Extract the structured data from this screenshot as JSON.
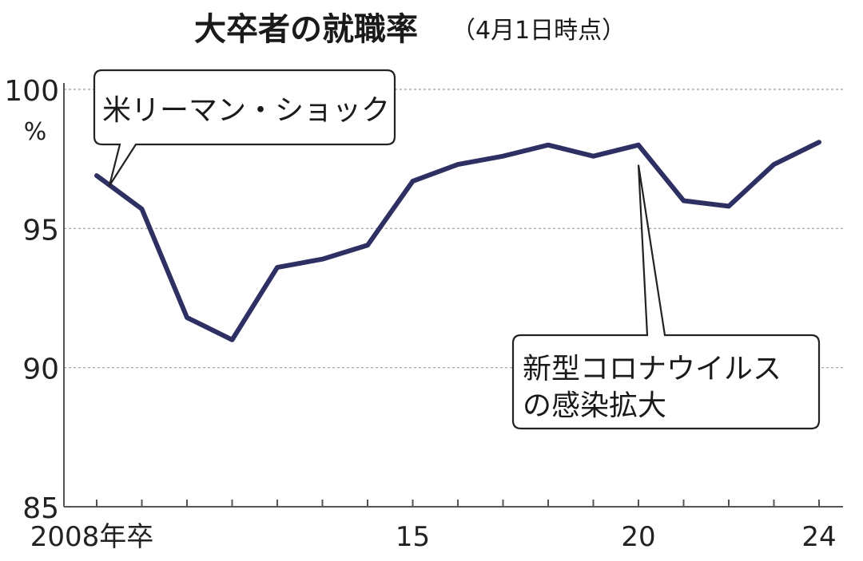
{
  "chart_data": {
    "type": "line",
    "title": "大卒者の就職率",
    "subtitle": "（4月1日時点）",
    "y_unit": "%",
    "ylim": [
      85,
      100
    ],
    "yticks": [
      {
        "value": 100,
        "label": "100"
      },
      {
        "value": 95,
        "label": "95"
      },
      {
        "value": 90,
        "label": "90"
      },
      {
        "value": 85,
        "label": "85"
      }
    ],
    "xlim": [
      2008,
      2024
    ],
    "xtick_labels": [
      {
        "year": 2008,
        "label": "2008年卒"
      },
      {
        "year": 2015,
        "label": "15"
      },
      {
        "year": 2020,
        "label": "20"
      },
      {
        "year": 2024,
        "label": "24"
      }
    ],
    "grid": "horizontal-dashed",
    "series": [
      {
        "color": "#2e2f63",
        "x": [
          2008,
          2009,
          2010,
          2011,
          2012,
          2013,
          2014,
          2015,
          2016,
          2017,
          2018,
          2019,
          2020,
          2021,
          2022,
          2023,
          2024
        ],
        "y": [
          96.9,
          95.7,
          91.8,
          91.0,
          93.6,
          93.9,
          94.4,
          96.7,
          97.3,
          97.6,
          98.0,
          97.6,
          98.0,
          96.0,
          95.8,
          97.3,
          98.1
        ]
      }
    ],
    "annotations": [
      {
        "id": "lehman",
        "lines": [
          "米リーマン・ショック"
        ],
        "x": 2008.3,
        "y": 97.2
      },
      {
        "id": "corona",
        "lines": [
          "新型コロナウイルス",
          "の感染拡大"
        ],
        "x": 2020,
        "y": 97.2
      }
    ]
  }
}
